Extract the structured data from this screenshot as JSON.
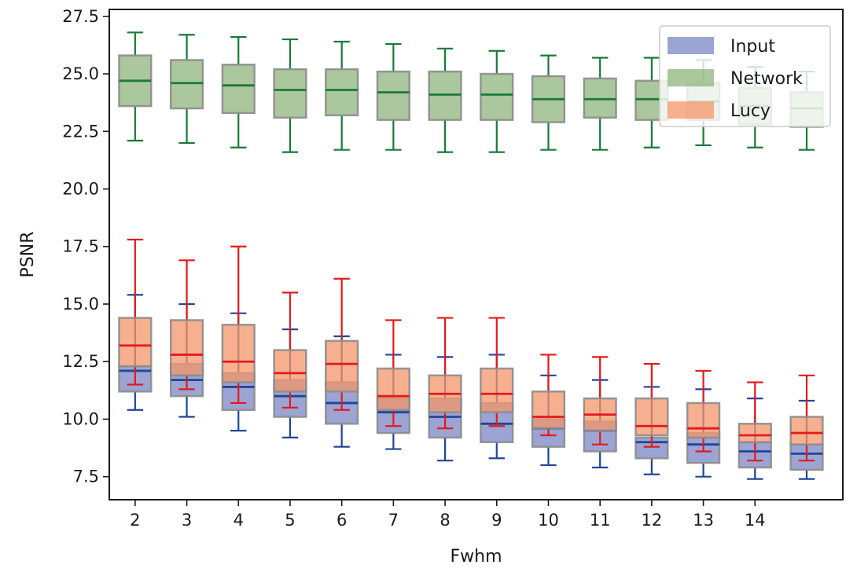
{
  "chart_data": {
    "type": "boxplot",
    "title": "",
    "xlabel": "Fwhm",
    "ylabel": "PSNR",
    "ylim": [
      6.5,
      27.8
    ],
    "y_ticks": [
      "7.5",
      "10.0",
      "12.5",
      "15.0",
      "17.5",
      "20.0",
      "22.5",
      "25.0",
      "27.5"
    ],
    "x_ticks": [
      "2",
      "3",
      "4",
      "5",
      "6",
      "7",
      "8",
      "9",
      "10",
      "11",
      "12",
      "13",
      "14"
    ],
    "legend_position": "top-right",
    "series": [
      {
        "name": "Input",
        "color": "#7b86c4",
        "line_color": "#1f4699",
        "boxes": [
          {
            "x": 2,
            "whislo": 10.4,
            "q1": 11.2,
            "med": 12.1,
            "q3": 12.3,
            "whishi": 15.4
          },
          {
            "x": 3,
            "whislo": 10.1,
            "q1": 11.0,
            "med": 11.7,
            "q3": 12.4,
            "whishi": 15.0
          },
          {
            "x": 4,
            "whislo": 9.5,
            "q1": 10.4,
            "med": 11.4,
            "q3": 12.0,
            "whishi": 14.6
          },
          {
            "x": 5,
            "whislo": 9.2,
            "q1": 10.1,
            "med": 11.0,
            "q3": 11.7,
            "whishi": 13.9
          },
          {
            "x": 6,
            "whislo": 8.8,
            "q1": 9.8,
            "med": 10.7,
            "q3": 11.6,
            "whishi": 13.6
          },
          {
            "x": 7,
            "whislo": 8.7,
            "q1": 9.4,
            "med": 10.3,
            "q3": 10.9,
            "whishi": 12.8
          },
          {
            "x": 8,
            "whislo": 8.2,
            "q1": 9.2,
            "med": 10.1,
            "q3": 10.9,
            "whishi": 12.7
          },
          {
            "x": 9,
            "whislo": 8.3,
            "q1": 9.0,
            "med": 9.8,
            "q3": 10.7,
            "whishi": 12.8
          },
          {
            "x": 10,
            "whislo": 8.0,
            "q1": 8.8,
            "med": 9.6,
            "q3": 10.0,
            "whishi": 11.9
          },
          {
            "x": 11,
            "whislo": 7.9,
            "q1": 8.6,
            "med": 9.5,
            "q3": 9.9,
            "whishi": 11.7
          },
          {
            "x": 12,
            "whislo": 7.6,
            "q1": 8.3,
            "med": 9.0,
            "q3": 9.2,
            "whishi": 11.4
          },
          {
            "x": 13,
            "whislo": 7.5,
            "q1": 8.1,
            "med": 8.9,
            "q3": 9.4,
            "whishi": 11.3
          },
          {
            "x": 14,
            "whislo": 7.4,
            "q1": 7.9,
            "med": 8.6,
            "q3": 9.0,
            "whishi": 10.9
          },
          {
            "x": 15,
            "whislo": 7.4,
            "q1": 7.8,
            "med": 8.5,
            "q3": 8.9,
            "whishi": 10.8
          }
        ]
      },
      {
        "name": "Network",
        "color": "#8fb47e",
        "line_color": "#1a7a38",
        "boxes": [
          {
            "x": 2,
            "whislo": 22.1,
            "q1": 23.6,
            "med": 24.7,
            "q3": 25.8,
            "whishi": 26.8
          },
          {
            "x": 3,
            "whislo": 22.0,
            "q1": 23.5,
            "med": 24.6,
            "q3": 25.6,
            "whishi": 26.7
          },
          {
            "x": 4,
            "whislo": 21.8,
            "q1": 23.3,
            "med": 24.5,
            "q3": 25.4,
            "whishi": 26.6
          },
          {
            "x": 5,
            "whislo": 21.6,
            "q1": 23.1,
            "med": 24.3,
            "q3": 25.2,
            "whishi": 26.5
          },
          {
            "x": 6,
            "whislo": 21.7,
            "q1": 23.2,
            "med": 24.3,
            "q3": 25.2,
            "whishi": 26.4
          },
          {
            "x": 7,
            "whislo": 21.7,
            "q1": 23.0,
            "med": 24.2,
            "q3": 25.1,
            "whishi": 26.3
          },
          {
            "x": 8,
            "whislo": 21.6,
            "q1": 23.0,
            "med": 24.1,
            "q3": 25.1,
            "whishi": 26.1
          },
          {
            "x": 9,
            "whislo": 21.6,
            "q1": 23.0,
            "med": 24.1,
            "q3": 25.0,
            "whishi": 26.0
          },
          {
            "x": 10,
            "whislo": 21.7,
            "q1": 22.9,
            "med": 23.9,
            "q3": 24.9,
            "whishi": 25.8
          },
          {
            "x": 11,
            "whislo": 21.7,
            "q1": 23.1,
            "med": 23.9,
            "q3": 24.8,
            "whishi": 25.7
          },
          {
            "x": 12,
            "whislo": 21.8,
            "q1": 23.0,
            "med": 23.9,
            "q3": 24.7,
            "whishi": 25.7
          },
          {
            "x": 13,
            "whislo": 21.9,
            "q1": 23.0,
            "med": 23.8,
            "q3": 24.6,
            "whishi": 25.6
          },
          {
            "x": 14,
            "whislo": 21.8,
            "q1": 22.8,
            "med": 23.6,
            "q3": 24.4,
            "whishi": 25.3
          },
          {
            "x": 15,
            "whislo": 21.7,
            "q1": 22.7,
            "med": 23.5,
            "q3": 24.2,
            "whishi": 25.1
          }
        ]
      },
      {
        "name": "Lucy",
        "color": "#f4956a",
        "line_color": "#e31a1c",
        "boxes": [
          {
            "x": 2,
            "whislo": 11.5,
            "q1": 12.3,
            "med": 13.2,
            "q3": 14.4,
            "whishi": 17.8
          },
          {
            "x": 3,
            "whislo": 11.3,
            "q1": 11.9,
            "med": 12.8,
            "q3": 14.3,
            "whishi": 16.9
          },
          {
            "x": 4,
            "whislo": 10.7,
            "q1": 11.6,
            "med": 12.5,
            "q3": 14.1,
            "whishi": 17.5
          },
          {
            "x": 5,
            "whislo": 10.5,
            "q1": 11.2,
            "med": 12.0,
            "q3": 13.0,
            "whishi": 15.5
          },
          {
            "x": 6,
            "whislo": 10.4,
            "q1": 11.2,
            "med": 12.4,
            "q3": 13.4,
            "whishi": 16.1
          },
          {
            "x": 7,
            "whislo": 9.7,
            "q1": 10.4,
            "med": 11.0,
            "q3": 12.2,
            "whishi": 14.3
          },
          {
            "x": 8,
            "whislo": 9.6,
            "q1": 10.3,
            "med": 11.1,
            "q3": 11.9,
            "whishi": 14.4
          },
          {
            "x": 9,
            "whislo": 9.7,
            "q1": 10.3,
            "med": 11.1,
            "q3": 12.2,
            "whishi": 14.4
          },
          {
            "x": 10,
            "whislo": 9.3,
            "q1": 9.6,
            "med": 10.1,
            "q3": 11.2,
            "whishi": 12.8
          },
          {
            "x": 11,
            "whislo": 8.9,
            "q1": 9.5,
            "med": 10.2,
            "q3": 10.9,
            "whishi": 12.7
          },
          {
            "x": 12,
            "whislo": 8.8,
            "q1": 9.3,
            "med": 9.7,
            "q3": 10.9,
            "whishi": 12.4
          },
          {
            "x": 13,
            "whislo": 8.6,
            "q1": 9.2,
            "med": 9.6,
            "q3": 10.7,
            "whishi": 12.1
          },
          {
            "x": 14,
            "whislo": 8.2,
            "q1": 9.0,
            "med": 9.3,
            "q3": 9.8,
            "whishi": 11.6
          },
          {
            "x": 15,
            "whislo": 8.2,
            "q1": 8.9,
            "med": 9.4,
            "q3": 10.1,
            "whishi": 11.9
          }
        ]
      }
    ]
  }
}
